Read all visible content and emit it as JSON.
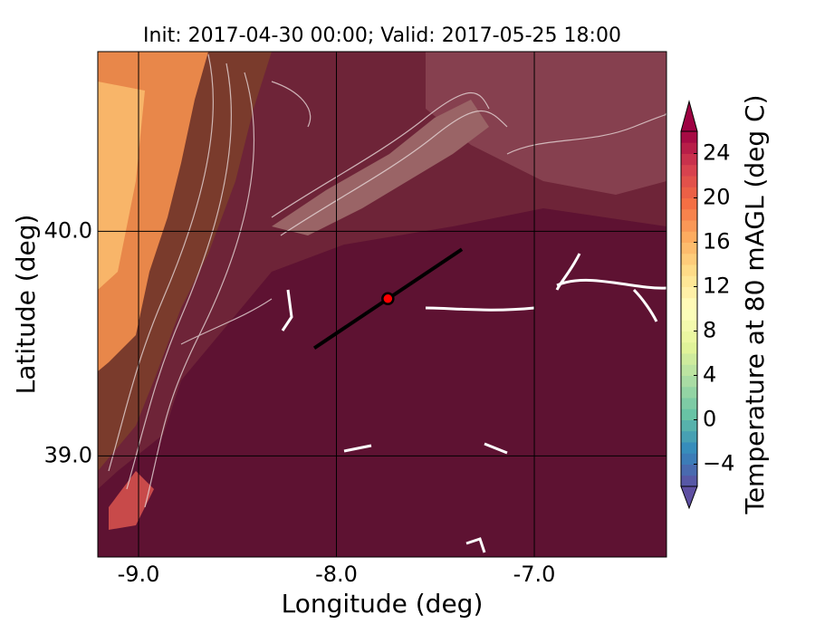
{
  "chart_data": {
    "type": "map",
    "title": "Init: 2017-04-30 00:00; Valid: 2017-05-25 18:00",
    "xlabel": "Longitude (deg)",
    "ylabel": "Latitude (deg)",
    "xlim": [
      -9.206,
      -6.332
    ],
    "ylim": [
      38.55,
      40.8
    ],
    "xticks": [
      {
        "value": -9,
        "label": "-9.0"
      },
      {
        "value": -8,
        "label": "-8.0"
      },
      {
        "value": -7,
        "label": "-7.0"
      }
    ],
    "yticks": [
      {
        "value": 39,
        "label": "39.0"
      },
      {
        "value": 40,
        "label": "40.0"
      }
    ],
    "grid": true,
    "colorbar": {
      "label": "Temperature at 80 mAGL (deg C)",
      "clim": [
        -6,
        26
      ],
      "ticks": [
        {
          "value": -4,
          "label": "−4"
        },
        0,
        4,
        8,
        12,
        16,
        20,
        24
      ],
      "colormap": [
        "#5e4fa2",
        "#3288bd",
        "#66c2a5",
        "#abdda4",
        "#e6f598",
        "#ffffbf",
        "#fee08b",
        "#fdae61",
        "#f46d43",
        "#d53e4f",
        "#9e0142"
      ]
    },
    "cross_section": {
      "start": [
        -8.112,
        39.48
      ],
      "end": [
        -7.366,
        39.92
      ],
      "color": "#000000"
    },
    "point": [
      -7.74,
      39.7
    ],
    "point_color": "#ff0000"
  }
}
